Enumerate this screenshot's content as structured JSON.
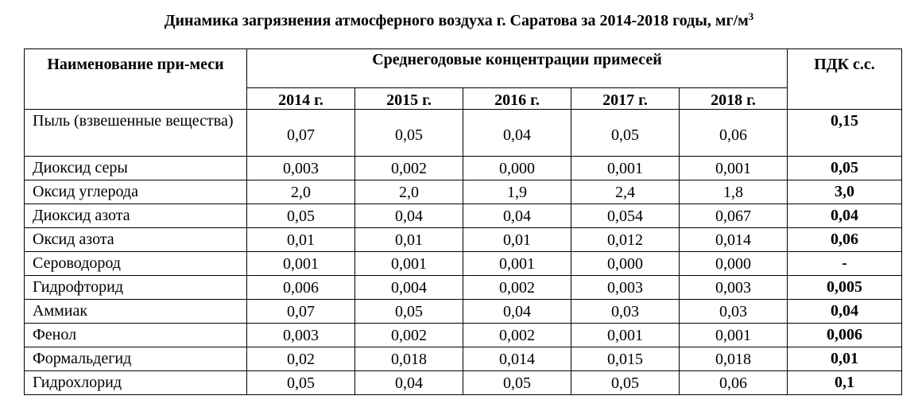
{
  "title": "Динамика загрязнения атмосферного воздуха г. Саратова за 2014-2018 годы, мг/м",
  "title_sup": "3",
  "header": {
    "name": "Наименование при-меси",
    "group": "Среднегодовые концентрации примесей",
    "pdk": "ПДК с.с.",
    "years": [
      "2014 г.",
      "2015 г.",
      "2016 г.",
      "2017 г.",
      "2018 г."
    ]
  },
  "rows": [
    {
      "name": "Пыль (взвешенные вещества)",
      "values": [
        "0,07",
        "0,05",
        "0,04",
        "0,05",
        "0,06"
      ],
      "pdk": "0,15"
    },
    {
      "name": "Диоксид серы",
      "values": [
        "0,003",
        "0,002",
        "0,000",
        "0,001",
        "0,001"
      ],
      "pdk": "0,05"
    },
    {
      "name": "Оксид углерода",
      "values": [
        "2,0",
        "2,0",
        "1,9",
        "2,4",
        "1,8"
      ],
      "pdk": "3,0"
    },
    {
      "name": "Диоксид азота",
      "values": [
        "0,05",
        "0,04",
        "0,04",
        "0,054",
        "0,067"
      ],
      "pdk": "0,04"
    },
    {
      "name": "Оксид азота",
      "values": [
        "0,01",
        "0,01",
        "0,01",
        "0,012",
        "0,014"
      ],
      "pdk": "0,06"
    },
    {
      "name": "Сероводород",
      "values": [
        "0,001",
        "0,001",
        "0,001",
        "0,000",
        "0,000"
      ],
      "pdk": "-"
    },
    {
      "name": "Гидрофторид",
      "values": [
        "0,006",
        "0,004",
        "0,002",
        "0,003",
        "0,003"
      ],
      "pdk": "0,005"
    },
    {
      "name": "Аммиак",
      "values": [
        "0,07",
        "0,05",
        "0,04",
        "0,03",
        "0,03"
      ],
      "pdk": "0,04"
    },
    {
      "name": "Фенол",
      "values": [
        "0,003",
        "0,002",
        "0,002",
        "0,001",
        "0,001"
      ],
      "pdk": "0,006"
    },
    {
      "name": "Формальдегид",
      "values": [
        "0,02",
        "0,018",
        "0,014",
        "0,015",
        "0,018"
      ],
      "pdk": "0,01"
    },
    {
      "name": "Гидрохлорид",
      "values": [
        "0,05",
        "0,04",
        "0,05",
        "0,05",
        "0,06"
      ],
      "pdk": "0,1"
    }
  ]
}
